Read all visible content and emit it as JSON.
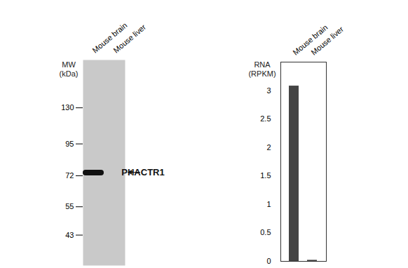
{
  "chart_data": [
    {
      "type": "blot",
      "y_label": "MW (kDa)",
      "categories": [
        "Mouse brain",
        "Mouse liver"
      ],
      "ylim": [
        33,
        197
      ],
      "yticks": [
        130,
        95,
        72,
        55,
        43
      ],
      "log": "y",
      "bands": [
        {
          "lane": "Mouse brain",
          "mw": 74
        }
      ],
      "annotation": "PHACTR1"
    },
    {
      "type": "bar",
      "y_label": "RNA (RPKM)",
      "categories": [
        "Mouse brain",
        "Mouse liver"
      ],
      "values": [
        3.08,
        0.02
      ],
      "color": "#444444",
      "ylim": [
        0,
        3.5
      ],
      "yticks": [
        0,
        0.5,
        1,
        1.5,
        2,
        2.5,
        3
      ]
    }
  ]
}
